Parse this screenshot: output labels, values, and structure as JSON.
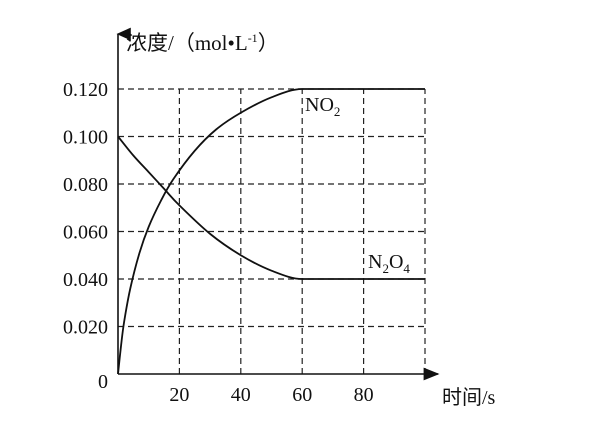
{
  "chart_data": {
    "type": "line",
    "title": "",
    "ylabel": "浓度/（mol•L⁻¹）",
    "ylabel_parts": {
      "main": "浓度/（mol•L",
      "sup": "-1",
      "end": "）"
    },
    "xlabel": "时间/s",
    "origin_label": "0",
    "xlim": [
      0,
      100
    ],
    "ylim": [
      0,
      0.12
    ],
    "x_ticks": [
      20,
      40,
      60,
      80
    ],
    "x_tick_labels": [
      "20",
      "40",
      "60",
      "80"
    ],
    "y_ticks": [
      0.02,
      0.04,
      0.06,
      0.08,
      0.1,
      0.12
    ],
    "y_tick_labels": [
      "0.020",
      "0.040",
      "0.060",
      "0.080",
      "0.100",
      "0.120"
    ],
    "grid": true,
    "grid_x": [
      20,
      40,
      60,
      80,
      100
    ],
    "series": [
      {
        "name": "NO2",
        "label_main": "NO",
        "label_sub": "2",
        "points": [
          [
            0,
            0
          ],
          [
            1,
            0.012
          ],
          [
            2,
            0.022
          ],
          [
            4,
            0.036
          ],
          [
            7,
            0.051
          ],
          [
            10,
            0.062
          ],
          [
            14,
            0.073
          ],
          [
            18,
            0.082
          ],
          [
            25,
            0.094
          ],
          [
            32,
            0.103
          ],
          [
            40,
            0.11
          ],
          [
            50,
            0.1165
          ],
          [
            60,
            0.12
          ],
          [
            100,
            0.12
          ]
        ]
      },
      {
        "name": "N2O4",
        "label_parts": [
          "N",
          "2",
          "O",
          "4"
        ],
        "points": [
          [
            0,
            0.1
          ],
          [
            5,
            0.092
          ],
          [
            10,
            0.085
          ],
          [
            15,
            0.078
          ],
          [
            20,
            0.071
          ],
          [
            30,
            0.059
          ],
          [
            40,
            0.05
          ],
          [
            50,
            0.0435
          ],
          [
            60,
            0.04
          ],
          [
            100,
            0.04
          ]
        ]
      }
    ]
  }
}
